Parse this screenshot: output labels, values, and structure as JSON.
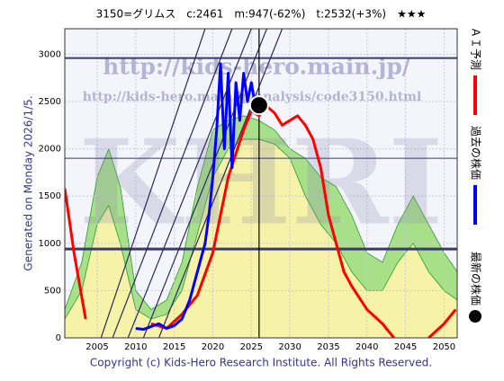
{
  "chart_data": {
    "type": "line",
    "title": "3150=グリムス　c:2461　m:947(-62%)　t:2532(+3%)　★★★",
    "side_note": "Generated on Monday 2026/1/5.",
    "footer": "Copyright (c) Kids-Hero Research Institute. All Rights Reserved.",
    "watermarks": [
      "http://kids-hero.main.jp/",
      "http://kids-hero.main.jp/analysis/code3150.html",
      "KHRI"
    ],
    "xlim": [
      2000.8,
      2051.7
    ],
    "ylim": [
      0,
      3270
    ],
    "xticks": [
      2005,
      2010,
      2015,
      2020,
      2025,
      2030,
      2035,
      2040,
      2045,
      2050
    ],
    "yticks": [
      0,
      500,
      1000,
      1500,
      2000,
      2500,
      3000
    ],
    "grid": true,
    "bands": [
      {
        "color": "#a8e08a",
        "x": [
          2000.8,
          2003,
          2005,
          2006.5,
          2008,
          2010,
          2012,
          2014,
          2016,
          2018,
          2020,
          2022,
          2024,
          2026,
          2028,
          2030,
          2032,
          2034,
          2036,
          2038,
          2040,
          2042,
          2044,
          2046,
          2048,
          2050,
          2051.7
        ],
        "values": [
          300,
          800,
          1700,
          2000,
          1600,
          500,
          300,
          400,
          800,
          1600,
          2200,
          2300,
          2350,
          2300,
          2200,
          2000,
          1900,
          1700,
          1600,
          1300,
          900,
          800,
          1200,
          1500,
          1200,
          900,
          700
        ]
      },
      {
        "color": "#f6f2a8",
        "x": [
          2000.8,
          2003,
          2005,
          2006.5,
          2008,
          2010,
          2012,
          2014,
          2016,
          2018,
          2020,
          2022,
          2024,
          2026,
          2028,
          2030,
          2032,
          2034,
          2036,
          2038,
          2040,
          2042,
          2044,
          2046,
          2048,
          2050,
          2051.7
        ],
        "values": [
          200,
          500,
          1200,
          1400,
          1000,
          300,
          200,
          250,
          500,
          1100,
          1700,
          2000,
          2100,
          2100,
          2050,
          1900,
          1500,
          1200,
          1000,
          700,
          500,
          500,
          800,
          1000,
          700,
          500,
          400
        ]
      }
    ],
    "levels": [
      {
        "value": 2960,
        "width": 2
      },
      {
        "value": 1900,
        "width": 1
      },
      {
        "value": 940,
        "width": 3
      }
    ],
    "trendlines": [
      {
        "x": [
          2005.5,
          2019
        ],
        "values": [
          0,
          3270
        ]
      },
      {
        "x": [
          2007,
          2022.5
        ],
        "values": [
          0,
          3270
        ]
      },
      {
        "x": [
          2009,
          2025
        ],
        "values": [
          0,
          3270
        ]
      },
      {
        "x": [
          2011,
          2027
        ],
        "values": [
          0,
          3270
        ]
      },
      {
        "x": [
          2013,
          2029
        ],
        "values": [
          0,
          3270
        ]
      }
    ],
    "now_line": 2026,
    "series": [
      {
        "name": "ＡＩ予測",
        "color": "#ff0000",
        "x": [
          2000.8,
          2002,
          2003.5,
          2005,
          2012,
          2014,
          2016,
          2018,
          2020,
          2022,
          2024,
          2025,
          2026,
          2027,
          2028,
          2029,
          2030,
          2031,
          2032,
          2033,
          2034,
          2035,
          2036,
          2037,
          2038,
          2040,
          2042,
          2043.5,
          2046,
          2048,
          2050,
          2051.5
        ],
        "values": [
          1580,
          900,
          200,
          null,
          150,
          100,
          250,
          450,
          900,
          1700,
          2200,
          2400,
          2350,
          2450,
          2380,
          2250,
          2300,
          2350,
          2250,
          2100,
          1800,
          1300,
          1000,
          700,
          550,
          300,
          150,
          0,
          null,
          0,
          150,
          300
        ]
      },
      {
        "name": "過去の株価",
        "color": "#0000ff",
        "x": [
          2010,
          2011,
          2012,
          2013,
          2014,
          2015,
          2016,
          2017,
          2018,
          2019,
          2019.5,
          2020,
          2020.5,
          2021,
          2021.5,
          2022,
          2022.5,
          2023,
          2023.5,
          2024,
          2024.5,
          2025,
          2025.5
        ],
        "values": [
          100,
          90,
          120,
          150,
          100,
          130,
          200,
          400,
          700,
          1000,
          1300,
          1700,
          2200,
          2900,
          2000,
          2800,
          1800,
          2700,
          2300,
          2800,
          2500,
          2700,
          2460
        ]
      }
    ],
    "latest": {
      "name": "最新の株価",
      "color": "#000000",
      "x": 2026,
      "value": 2461
    }
  }
}
